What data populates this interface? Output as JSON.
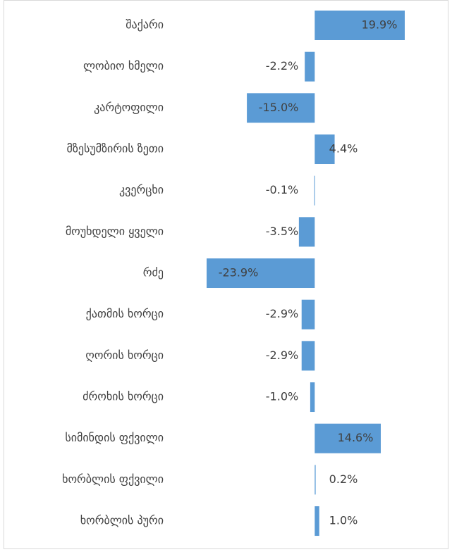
{
  "chart_data": {
    "type": "bar",
    "orientation": "horizontal",
    "color": "#5b9bd5",
    "categories": [
      "შაქარი",
      "ლობიო ხმელი",
      "კარტოფილი",
      "მზესუმზირის ზეთი",
      "კვერცხი",
      "მოუხდელი ყველი",
      "რძე",
      "ქათმის ხორცი",
      "ღორის ხორცი",
      "ძროხის ხორცი",
      "სიმინდის ფქვილი",
      "ხორბლის ფქვილი",
      "ხორბლის პური"
    ],
    "values": [
      19.9,
      -2.2,
      -15.0,
      4.4,
      -0.1,
      -3.5,
      -23.9,
      -2.9,
      -2.9,
      -1.0,
      14.6,
      0.2,
      1.0
    ],
    "value_labels": [
      "19.9%",
      "-2.2%",
      "-15.0%",
      "4.4%",
      "-0.1%",
      "-3.5%",
      "-23.9%",
      "-2.9%",
      "-2.9%",
      "-1.0%",
      "14.6%",
      "0.2%",
      "1.0%"
    ]
  }
}
